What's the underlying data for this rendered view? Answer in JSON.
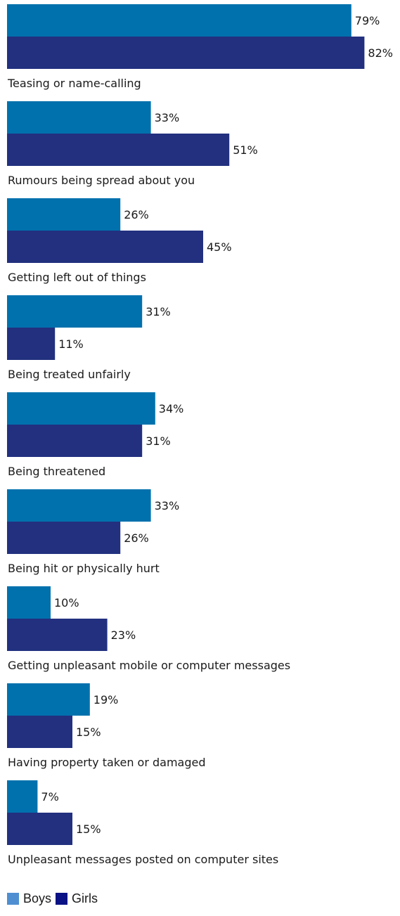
{
  "chart_data": {
    "type": "bar",
    "orientation": "horizontal",
    "categories": [
      "Teasing or name-calling",
      "Rumours being spread about you",
      "Getting left out of things",
      "Being treated unfairly",
      "Being threatened",
      "Being hit or physically hurt",
      "Getting unpleasant mobile or computer messages",
      "Having property taken or damaged",
      "Unpleasant messages posted on computer sites"
    ],
    "series": [
      {
        "name": "Boys",
        "values": [
          79,
          33,
          26,
          31,
          34,
          33,
          10,
          19,
          7
        ],
        "labels": [
          "79%",
          "33%",
          "26%",
          "31%",
          "34%",
          "33%",
          "10%",
          "19%",
          "7%"
        ]
      },
      {
        "name": "Girls",
        "values": [
          82,
          51,
          45,
          11,
          31,
          26,
          23,
          15,
          15
        ],
        "labels": [
          "82%",
          "51%",
          "45%",
          "11%",
          "31%",
          "26%",
          "23%",
          "15%",
          "15%"
        ]
      }
    ],
    "legend_position": "bottom-left",
    "grid": false,
    "colors": {
      "boys_bar": "#0071ad",
      "girls_bar": "#22307f",
      "boys_legend": "#4f8fd1",
      "girls_legend": "#0a1286"
    }
  }
}
